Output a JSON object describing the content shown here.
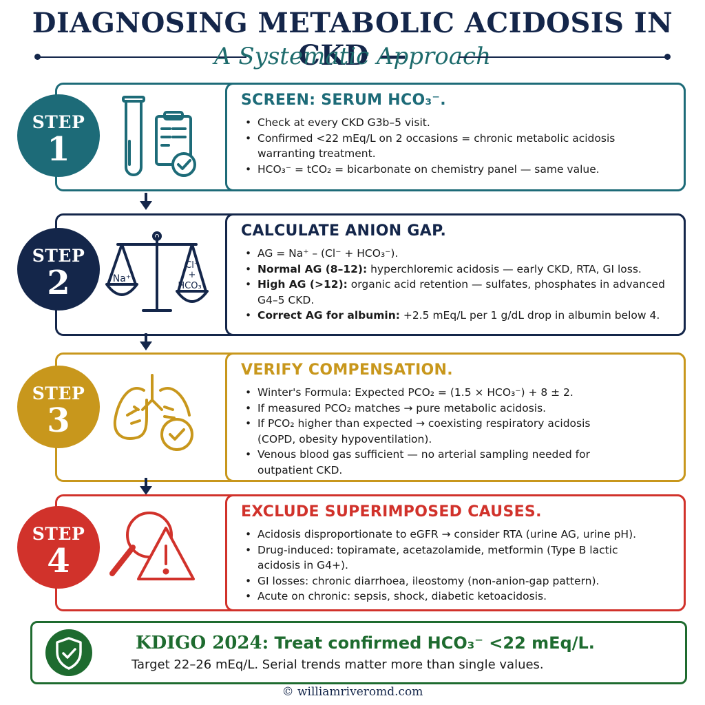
{
  "title": "DIAGNOSING METABOLIC ACIDOSIS IN CKD —",
  "subtitle": "A Systematic Approach",
  "steps": [
    {
      "word": "STEP",
      "num": "1",
      "color": "#1d6b78",
      "icon": "test-tube-clipboard-check-icon",
      "heading": "SCREEN: SERUM HCO₃⁻.",
      "bullets": [
        {
          "bold": "",
          "text": "Check at every CKD G3b–5 visit."
        },
        {
          "bold": "",
          "text": "Confirmed <22 mEq/L on 2 occasions = chronic metabolic acidosis warranting treatment."
        },
        {
          "bold": "",
          "text": "HCO₃⁻ = tCO₂ = bicarbonate on chemistry panel — same value."
        }
      ]
    },
    {
      "word": "STEP",
      "num": "2",
      "color": "#14264a",
      "icon": "balance-scale-icon",
      "icon_left": "Na⁺",
      "icon_right": [
        "Cl⁻",
        "+",
        "HCO₃⁻"
      ],
      "heading": "CALCULATE ANION GAP.",
      "bullets": [
        {
          "bold": "",
          "text": "AG = Na⁺ – (Cl⁻ + HCO₃⁻)."
        },
        {
          "bold": "Normal AG (8–12):",
          "text": " hyperchloremic acidosis — early CKD, RTA, GI loss."
        },
        {
          "bold": "High AG (>12):",
          "text": " organic acid retention — sulfates, phosphates in advanced G4–5 CKD."
        },
        {
          "bold": "Correct AG for albumin:",
          "text": " +2.5 mEq/L per 1 g/dL drop in albumin below 4."
        }
      ]
    },
    {
      "word": "STEP",
      "num": "3",
      "color": "#c8971c",
      "icon": "lungs-check-icon",
      "heading": "VERIFY COMPENSATION.",
      "bullets": [
        {
          "bold": "",
          "text": "Winter's Formula: Expected PCO₂ = (1.5 × HCO₃⁻) + 8 ± 2."
        },
        {
          "bold": "",
          "text": "If measured PCO₂ matches → pure metabolic acidosis."
        },
        {
          "bold": "",
          "text": "If PCO₂ higher than expected → coexisting respiratory acidosis (COPD, obesity hypoventilation)."
        },
        {
          "bold": "",
          "text": "Venous blood gas sufficient — no arterial sampling needed for outpatient CKD."
        }
      ]
    },
    {
      "word": "STEP",
      "num": "4",
      "color": "#d1322b",
      "icon": "magnifier-warning-icon",
      "heading": "EXCLUDE SUPERIMPOSED CAUSES.",
      "bullets": [
        {
          "bold": "",
          "text": "Acidosis disproportionate to eGFR → consider RTA (urine AG, urine pH)."
        },
        {
          "bold": "",
          "text": "Drug-induced: topiramate, acetazolamide, metformin (Type B lactic acidosis in G4+)."
        },
        {
          "bold": "",
          "text": "GI losses: chronic diarrhoea, ileostomy (non-anion-gap pattern)."
        },
        {
          "bold": "",
          "text": "Acute on chronic: sepsis, shock, diabetic ketoacidosis."
        }
      ]
    }
  ],
  "kdigo": {
    "prefix": "KDIGO 2024:",
    "text": " Treat confirmed HCO₃⁻ <22 mEq/L.",
    "sub": "Target 22–26 mEq/L. Serial trends matter more than single values.",
    "color": "#1e6b2f",
    "icon": "shield-check-icon"
  },
  "footer": "© williamriveromd.com"
}
